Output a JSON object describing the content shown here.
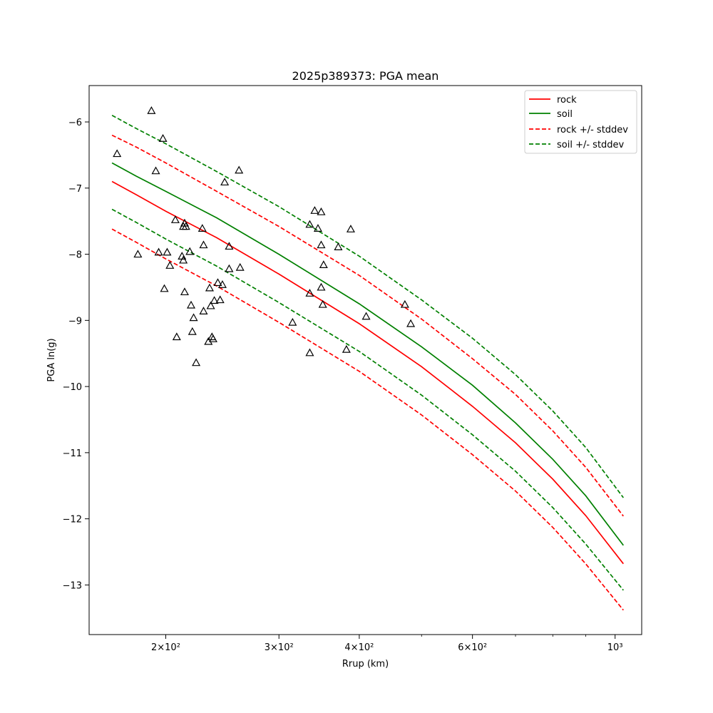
{
  "chart_data": {
    "type": "line",
    "title": "2025p389373: PGA mean",
    "xlabel": "Rrup (km)",
    "ylabel": "PGA ln(g)",
    "xscale": "log",
    "xlim": [
      152,
      1100
    ],
    "ylim": [
      -13.75,
      -5.45
    ],
    "x_ticks": [
      {
        "value": 200,
        "label": "2×10²"
      },
      {
        "value": 300,
        "label": "3×10²"
      },
      {
        "value": 400,
        "label": "4×10²"
      },
      {
        "value": 600,
        "label": "6×10²"
      },
      {
        "value": 1000,
        "label": "10³"
      }
    ],
    "x_minor_ticks": [
      500,
      700,
      800,
      900
    ],
    "y_ticks": [
      -6,
      -7,
      -8,
      -9,
      -10,
      -11,
      -12,
      -13
    ],
    "grid": false,
    "legend_position": "top-right",
    "legend": [
      "rock",
      "soil",
      "rock +/- stddev",
      "soil +/- stddev"
    ],
    "series": [
      {
        "name": "rock",
        "style": "solid",
        "color": "#ff0000",
        "x": [
          165,
          180,
          200,
          240,
          300,
          400,
          500,
          600,
          700,
          800,
          900,
          1030
        ],
        "y": [
          -6.9,
          -7.1,
          -7.35,
          -7.75,
          -8.3,
          -9.05,
          -9.7,
          -10.3,
          -10.85,
          -11.4,
          -11.95,
          -12.68
        ]
      },
      {
        "name": "soil",
        "style": "solid",
        "color": "#008000",
        "x": [
          165,
          180,
          200,
          240,
          300,
          400,
          500,
          600,
          700,
          800,
          900,
          1030
        ],
        "y": [
          -6.62,
          -6.82,
          -7.05,
          -7.45,
          -8.0,
          -8.75,
          -9.4,
          -9.98,
          -10.55,
          -11.1,
          -11.65,
          -12.4
        ]
      },
      {
        "name": "rock + stddev",
        "style": "dashed",
        "color": "#ff0000",
        "x": [
          165,
          180,
          200,
          240,
          300,
          400,
          500,
          600,
          700,
          800,
          900,
          1030
        ],
        "y": [
          -6.2,
          -6.38,
          -6.62,
          -7.05,
          -7.58,
          -8.32,
          -8.98,
          -9.58,
          -10.12,
          -10.67,
          -11.22,
          -11.96
        ]
      },
      {
        "name": "rock - stddev",
        "style": "dashed",
        "color": "#ff0000",
        "x": [
          165,
          180,
          200,
          240,
          300,
          400,
          500,
          600,
          700,
          800,
          900,
          1030
        ],
        "y": [
          -7.62,
          -7.82,
          -8.07,
          -8.48,
          -9.03,
          -9.77,
          -10.43,
          -11.03,
          -11.58,
          -12.13,
          -12.68,
          -13.38
        ]
      },
      {
        "name": "soil + stddev",
        "style": "dashed",
        "color": "#008000",
        "x": [
          165,
          180,
          200,
          240,
          300,
          400,
          500,
          600,
          700,
          800,
          900,
          1030
        ],
        "y": [
          -5.9,
          -6.1,
          -6.33,
          -6.75,
          -7.28,
          -8.03,
          -8.69,
          -9.27,
          -9.82,
          -10.37,
          -10.92,
          -11.68
        ]
      },
      {
        "name": "soil - stddev",
        "style": "dashed",
        "color": "#008000",
        "x": [
          165,
          180,
          200,
          240,
          300,
          400,
          500,
          600,
          700,
          800,
          900,
          1030
        ],
        "y": [
          -7.32,
          -7.52,
          -7.77,
          -8.18,
          -8.73,
          -9.47,
          -10.13,
          -10.73,
          -11.28,
          -11.83,
          -12.38,
          -13.08
        ]
      }
    ],
    "observations": {
      "marker": "triangle",
      "color": "#000000",
      "points": [
        {
          "x": 190,
          "y": -5.83
        },
        {
          "x": 168,
          "y": -6.48
        },
        {
          "x": 198,
          "y": -6.25
        },
        {
          "x": 193,
          "y": -6.74
        },
        {
          "x": 181,
          "y": -8.0
        },
        {
          "x": 195,
          "y": -7.97
        },
        {
          "x": 201,
          "y": -7.97
        },
        {
          "x": 203,
          "y": -8.17
        },
        {
          "x": 199,
          "y": -8.52
        },
        {
          "x": 207,
          "y": -7.48
        },
        {
          "x": 212,
          "y": -8.03
        },
        {
          "x": 213,
          "y": -8.09
        },
        {
          "x": 214,
          "y": -7.53
        },
        {
          "x": 215,
          "y": -7.58
        },
        {
          "x": 213,
          "y": -7.58
        },
        {
          "x": 214,
          "y": -8.57
        },
        {
          "x": 208,
          "y": -9.25
        },
        {
          "x": 218,
          "y": -7.96
        },
        {
          "x": 219,
          "y": -8.77
        },
        {
          "x": 221,
          "y": -8.96
        },
        {
          "x": 220,
          "y": -9.17
        },
        {
          "x": 223,
          "y": -9.64
        },
        {
          "x": 228,
          "y": -7.61
        },
        {
          "x": 229,
          "y": -7.86
        },
        {
          "x": 229,
          "y": -8.86
        },
        {
          "x": 234,
          "y": -8.51
        },
        {
          "x": 233,
          "y": -9.32
        },
        {
          "x": 235,
          "y": -8.78
        },
        {
          "x": 236,
          "y": -9.25
        },
        {
          "x": 237,
          "y": -9.28
        },
        {
          "x": 238,
          "y": -8.7
        },
        {
          "x": 241,
          "y": -8.43
        },
        {
          "x": 243,
          "y": -8.69
        },
        {
          "x": 245,
          "y": -8.46
        },
        {
          "x": 247,
          "y": -6.91
        },
        {
          "x": 251,
          "y": -7.88
        },
        {
          "x": 251,
          "y": -8.22
        },
        {
          "x": 260,
          "y": -6.73
        },
        {
          "x": 261,
          "y": -8.2
        },
        {
          "x": 315,
          "y": -9.03
        },
        {
          "x": 335,
          "y": -7.55
        },
        {
          "x": 335,
          "y": -8.59
        },
        {
          "x": 335,
          "y": -9.49
        },
        {
          "x": 341,
          "y": -7.34
        },
        {
          "x": 345,
          "y": -7.61
        },
        {
          "x": 349,
          "y": -7.36
        },
        {
          "x": 349,
          "y": -7.86
        },
        {
          "x": 349,
          "y": -8.5
        },
        {
          "x": 351,
          "y": -8.76
        },
        {
          "x": 352,
          "y": -8.16
        },
        {
          "x": 371,
          "y": -7.89
        },
        {
          "x": 382,
          "y": -9.44
        },
        {
          "x": 388,
          "y": -7.62
        },
        {
          "x": 410,
          "y": -8.94
        },
        {
          "x": 471,
          "y": -8.76
        },
        {
          "x": 481,
          "y": -9.05
        }
      ]
    }
  }
}
